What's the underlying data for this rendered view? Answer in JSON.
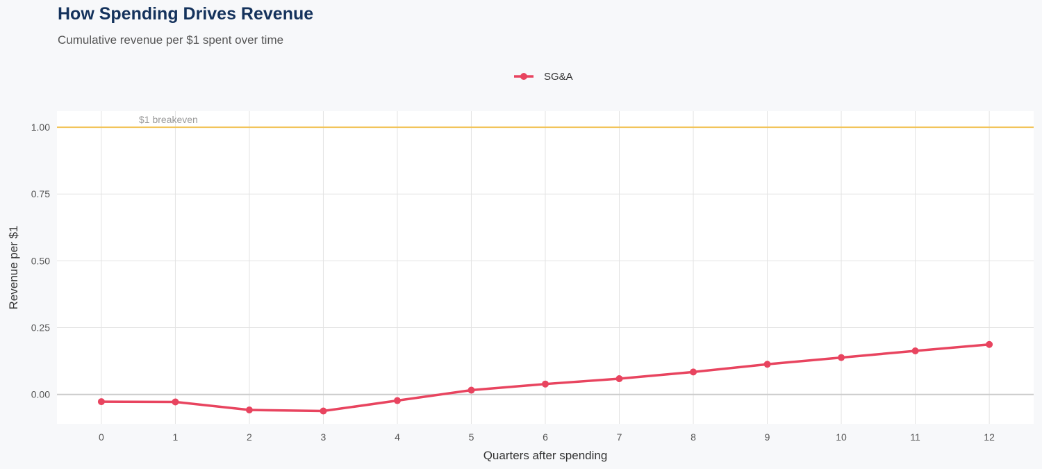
{
  "chart_data": {
    "type": "line",
    "title": "How Spending Drives Revenue",
    "subtitle": "Cumulative revenue per $1 spent over time",
    "xlabel": "Quarters after spending",
    "ylabel": "Revenue per $1",
    "x": [
      0,
      1,
      2,
      3,
      4,
      5,
      6,
      7,
      8,
      9,
      10,
      11,
      12
    ],
    "x_ticks": [
      "0",
      "1",
      "2",
      "3",
      "4",
      "5",
      "6",
      "7",
      "8",
      "9",
      "10",
      "11",
      "12"
    ],
    "y_ticks": [
      "0.00",
      "0.25",
      "0.50",
      "0.75",
      "1.00"
    ],
    "ylim": [
      -0.11,
      1.06
    ],
    "xlim": [
      -0.6,
      12.6
    ],
    "grid": true,
    "legend_position": "top-center",
    "series": [
      {
        "name": "SG&A",
        "color": "#e8445f",
        "values": [
          -0.027,
          -0.028,
          -0.058,
          -0.062,
          -0.023,
          0.016,
          0.039,
          0.059,
          0.084,
          0.113,
          0.138,
          0.163,
          0.187
        ]
      }
    ],
    "reference_line": {
      "y": 1.0,
      "label": "$1 breakeven",
      "color": "#f2c45a"
    }
  }
}
